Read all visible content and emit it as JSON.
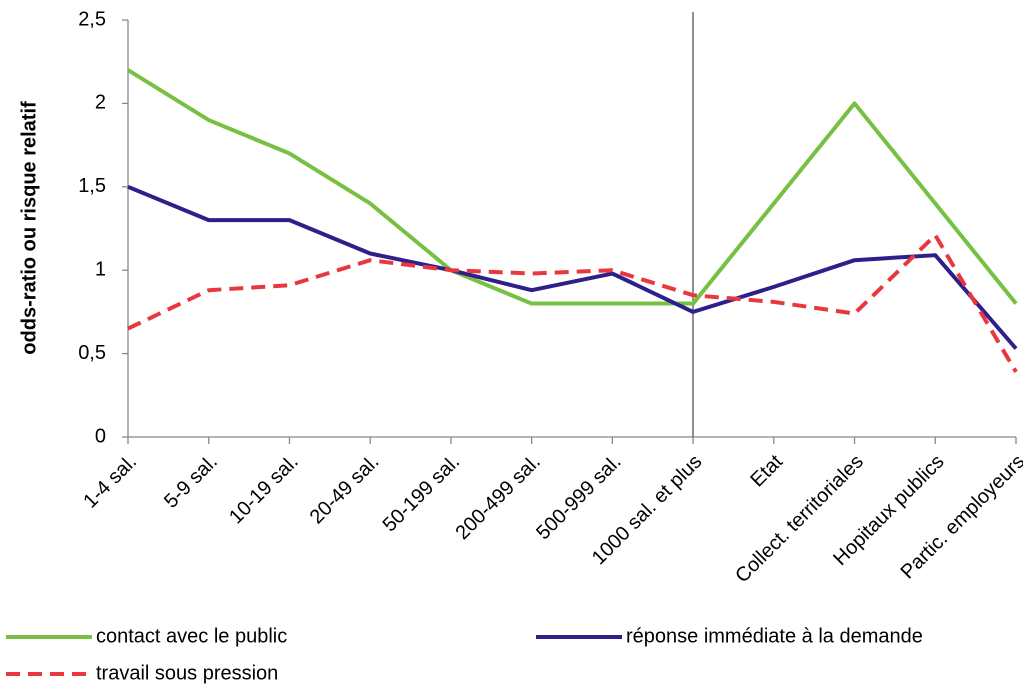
{
  "chart_data": {
    "type": "line",
    "y_label": "odds-ratio ou risque relatif",
    "categories": [
      "1-4 sal.",
      "5-9 sal.",
      "10-19 sal.",
      "20-49 sal.",
      "50-199 sal.",
      "200-499 sal.",
      "500-999 sal.",
      "1000 sal.  et plus",
      "Etat",
      "Collect. territoriales",
      "Hopitaux publics",
      "Partic. employeurs"
    ],
    "series": [
      {
        "name": "contact avec le public",
        "color": "#77c043",
        "dashed": false,
        "values": [
          2.2,
          1.9,
          1.7,
          1.4,
          1.0,
          0.8,
          0.8,
          0.8,
          1.4,
          2.0,
          1.4,
          0.8
        ]
      },
      {
        "name": "réponse immédiate à la demande",
        "color": "#2e1f8a",
        "dashed": false,
        "values": [
          1.5,
          1.3,
          1.3,
          1.1,
          1.0,
          0.88,
          0.98,
          0.75,
          0.9,
          1.06,
          1.09,
          0.53
        ]
      },
      {
        "name": "travail sous pression",
        "color": "#e8383d",
        "dashed": true,
        "values": [
          0.65,
          0.88,
          0.91,
          1.06,
          1.0,
          0.98,
          1.0,
          0.85,
          0.81,
          0.74,
          1.21,
          0.39
        ]
      }
    ],
    "ylim": [
      0,
      2.5
    ],
    "yticks": [
      0,
      {
        "value": 0.5,
        "label": "0,5"
      },
      1,
      {
        "value": 1.5,
        "label": "1,5"
      },
      2,
      {
        "value": 2.5,
        "label": "2,5"
      }
    ],
    "grid": false
  }
}
